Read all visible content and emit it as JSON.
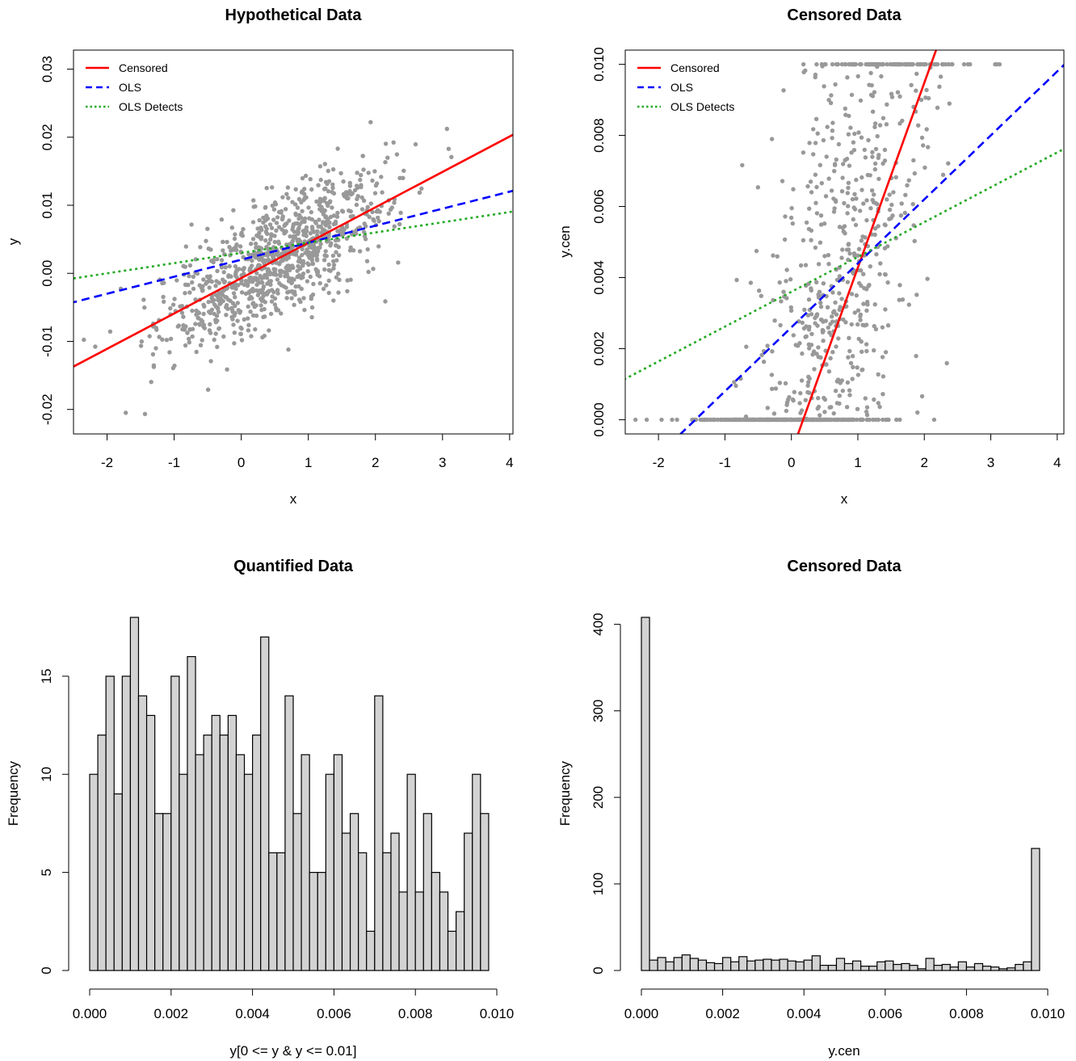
{
  "chart_data": [
    {
      "type": "scatter",
      "title": "Hypothetical Data",
      "xlabel": "x",
      "ylabel": "y",
      "xlim": [
        -2.5,
        4.05
      ],
      "ylim": [
        -0.0236,
        0.0328
      ],
      "xticks": [
        -2,
        -1,
        0,
        1,
        2,
        3,
        4
      ],
      "xtick_labels": [
        "-2",
        "-1",
        "0",
        "1",
        "2",
        "3",
        "4"
      ],
      "yticks": [
        -0.02,
        -0.01,
        0.0,
        0.01,
        0.02,
        0.03
      ],
      "ytick_labels": [
        "-0.02",
        "-0.01",
        "0.00",
        "0.01",
        "0.02",
        "0.03"
      ],
      "points": {
        "n": 1000,
        "x_mean": 0.55,
        "x_sd": 0.85,
        "intercept": -0.0007,
        "slope": 0.0052,
        "noise_sd": 0.0045,
        "color": "#999999"
      },
      "lines": [
        {
          "name": "Censored",
          "intercept": -0.0007,
          "slope": 0.0052,
          "color": "#ff0000",
          "dash": "solid"
        },
        {
          "name": "OLS",
          "intercept": 0.002,
          "slope": 0.0025,
          "color": "#0000ff",
          "dash": "dashed"
        },
        {
          "name": "OLS Detects",
          "intercept": 0.003,
          "slope": 0.0015,
          "color": "#22aa22",
          "dash": "dotted"
        }
      ],
      "legend_position": "top-left",
      "grid": false
    },
    {
      "type": "scatter",
      "title": "Censored Data",
      "xlabel": "x",
      "ylabel": "y.cen",
      "xlim": [
        -2.5,
        4.1
      ],
      "ylim": [
        -0.0004,
        0.0104
      ],
      "xticks": [
        -2,
        -1,
        0,
        1,
        2,
        3,
        4
      ],
      "xtick_labels": [
        "-2",
        "-1",
        "0",
        "1",
        "2",
        "3",
        "4"
      ],
      "yticks": [
        0.0,
        0.002,
        0.004,
        0.006,
        0.008,
        0.01
      ],
      "ytick_labels": [
        "0.000",
        "0.002",
        "0.004",
        "0.006",
        "0.008",
        "0.010"
      ],
      "points": {
        "n": 1000,
        "x_mean": 0.55,
        "x_sd": 0.85,
        "intercept": -0.0007,
        "slope": 0.0052,
        "noise_sd": 0.0045,
        "censor_low": 0.0,
        "censor_high": 0.01,
        "color": "#999999"
      },
      "lines": [
        {
          "name": "Censored",
          "intercept": -0.00092,
          "slope": 0.0052,
          "color": "#ff0000",
          "dash": "solid"
        },
        {
          "name": "OLS",
          "intercept": 0.0026,
          "slope": 0.0018,
          "color": "#0000ff",
          "dash": "dashed"
        },
        {
          "name": "OLS Detects",
          "intercept": 0.0036,
          "slope": 0.00098,
          "color": "#22aa22",
          "dash": "dotted"
        }
      ],
      "legend_position": "top-left",
      "grid": false
    },
    {
      "type": "bar",
      "title": "Quantified Data",
      "xlabel": "y[0 <= y & y <= 0.01]",
      "ylabel": "Frequency",
      "bin_start": 0.0,
      "bin_width": 0.0002,
      "values": [
        10,
        12,
        15,
        9,
        15,
        18,
        14,
        13,
        8,
        8,
        15,
        10,
        16,
        11,
        12,
        13,
        12,
        13,
        11,
        10,
        12,
        17,
        6,
        6,
        14,
        8,
        11,
        5,
        5,
        10,
        11,
        7,
        8,
        6,
        2,
        14,
        6,
        7,
        4,
        10,
        4,
        8,
        5,
        4,
        2,
        3,
        7,
        10,
        8
      ],
      "xlim": [
        0.0,
        0.01
      ],
      "ylim": [
        0,
        18
      ],
      "xticks": [
        0.0,
        0.002,
        0.004,
        0.006,
        0.008,
        0.01
      ],
      "xtick_labels": [
        "0.000",
        "0.002",
        "0.004",
        "0.006",
        "0.008",
        "0.010"
      ],
      "yticks": [
        0,
        5,
        10,
        15
      ],
      "ytick_labels": [
        "0",
        "5",
        "10",
        "15"
      ],
      "bar_color": "#d3d3d3"
    },
    {
      "type": "bar",
      "title": "Censored Data",
      "xlabel": "y.cen",
      "ylabel": "Frequency",
      "bin_start": 0.0,
      "bin_width": 0.0002,
      "values": [
        408,
        12,
        15,
        10,
        15,
        18,
        14,
        12,
        9,
        8,
        15,
        10,
        16,
        11,
        12,
        13,
        12,
        13,
        11,
        10,
        12,
        17,
        6,
        6,
        14,
        8,
        11,
        5,
        5,
        10,
        11,
        7,
        8,
        6,
        2,
        14,
        6,
        7,
        4,
        10,
        4,
        8,
        5,
        4,
        2,
        3,
        7,
        10,
        141
      ],
      "xlim": [
        0.0,
        0.01
      ],
      "ylim": [
        0,
        408
      ],
      "xticks": [
        0.0,
        0.002,
        0.004,
        0.006,
        0.008,
        0.01
      ],
      "xtick_labels": [
        "0.000",
        "0.002",
        "0.004",
        "0.006",
        "0.008",
        "0.010"
      ],
      "yticks": [
        0,
        100,
        200,
        300,
        400
      ],
      "ytick_labels": [
        "0",
        "100",
        "200",
        "300",
        "400"
      ],
      "bar_color": "#d3d3d3"
    }
  ]
}
